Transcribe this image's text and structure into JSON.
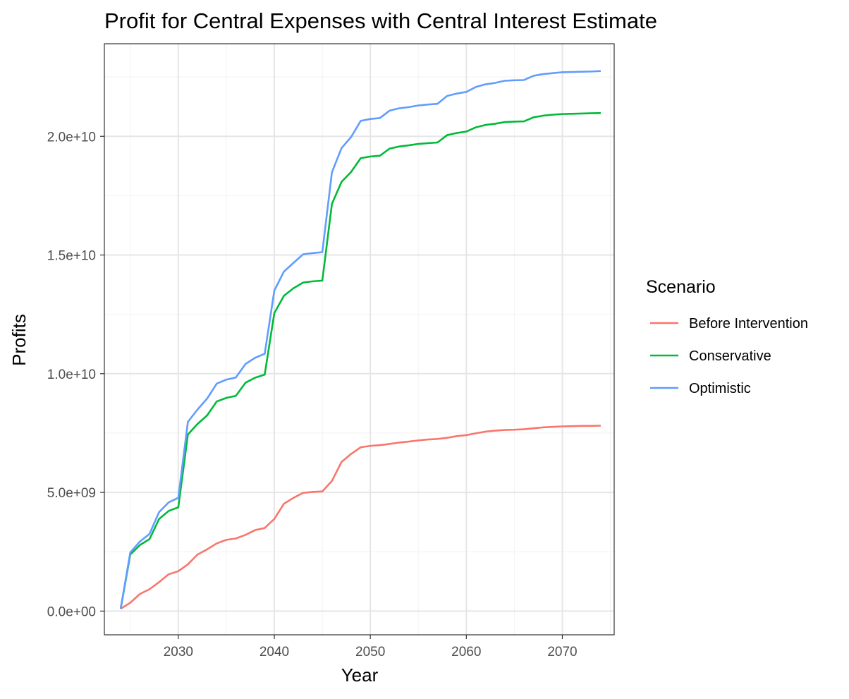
{
  "chart_data": {
    "type": "line",
    "title": "Profit for Central Expenses with Central Interest Estimate",
    "xlabel": "Year",
    "ylabel": "Profits",
    "xlim": [
      2022.3,
      2075.4
    ],
    "ylim": [
      -1000000000,
      23900000000
    ],
    "x_ticks": [
      2030,
      2040,
      2050,
      2060,
      2070
    ],
    "x_tick_labels": [
      "2030",
      "2040",
      "2050",
      "2060",
      "2070"
    ],
    "y_ticks": [
      0,
      5000000000,
      10000000000,
      15000000000,
      20000000000
    ],
    "y_tick_labels": [
      "0.0e+00",
      "5.0e+09",
      "1.0e+10",
      "1.5e+10",
      "2.0e+10"
    ],
    "grid": true,
    "legend": {
      "title": "Scenario",
      "position": "right"
    },
    "x": [
      2024,
      2025,
      2026,
      2027,
      2028,
      2029,
      2030,
      2031,
      2032,
      2033,
      2034,
      2035,
      2036,
      2037,
      2038,
      2039,
      2040,
      2041,
      2042,
      2043,
      2044,
      2045,
      2046,
      2047,
      2048,
      2049,
      2050,
      2051,
      2052,
      2053,
      2054,
      2055,
      2056,
      2057,
      2058,
      2059,
      2060,
      2061,
      2062,
      2063,
      2064,
      2065,
      2066,
      2067,
      2068,
      2069,
      2070,
      2071,
      2072,
      2073,
      2074
    ],
    "series": [
      {
        "name": "Before Intervention",
        "color": "#F8766D",
        "values": [
          0.1,
          0.35,
          0.72,
          0.92,
          1.22,
          1.55,
          1.68,
          1.97,
          2.38,
          2.6,
          2.85,
          3.0,
          3.06,
          3.21,
          3.41,
          3.5,
          3.88,
          4.52,
          4.77,
          4.98,
          5.02,
          5.04,
          5.48,
          6.28,
          6.62,
          6.9,
          6.96,
          6.99,
          7.04,
          7.1,
          7.14,
          7.19,
          7.23,
          7.25,
          7.3,
          7.37,
          7.41,
          7.49,
          7.56,
          7.6,
          7.63,
          7.64,
          7.66,
          7.7,
          7.74,
          7.76,
          7.78,
          7.79,
          7.8,
          7.8,
          7.81
        ]
      },
      {
        "name": "Conservative",
        "color": "#00BA38",
        "values": [
          0.1,
          2.38,
          2.78,
          3.03,
          3.88,
          4.22,
          4.37,
          7.44,
          7.88,
          8.24,
          8.83,
          8.98,
          9.07,
          9.62,
          9.83,
          9.96,
          12.55,
          13.28,
          13.6,
          13.84,
          13.89,
          13.92,
          17.15,
          18.08,
          18.5,
          19.08,
          19.15,
          19.18,
          19.48,
          19.57,
          19.62,
          19.68,
          19.71,
          19.74,
          20.05,
          20.14,
          20.2,
          20.38,
          20.48,
          20.53,
          20.6,
          20.62,
          20.63,
          20.8,
          20.87,
          20.91,
          20.94,
          20.95,
          20.96,
          20.97,
          20.98
        ]
      },
      {
        "name": "Optimistic",
        "color": "#619CFF",
        "values": [
          0.1,
          2.47,
          2.93,
          3.25,
          4.17,
          4.58,
          4.77,
          7.97,
          8.49,
          8.95,
          9.58,
          9.75,
          9.84,
          10.41,
          10.67,
          10.84,
          13.5,
          14.3,
          14.67,
          15.03,
          15.08,
          15.12,
          18.48,
          19.5,
          19.97,
          20.65,
          20.73,
          20.77,
          21.08,
          21.18,
          21.23,
          21.3,
          21.34,
          21.37,
          21.7,
          21.8,
          21.87,
          22.08,
          22.19,
          22.25,
          22.34,
          22.36,
          22.37,
          22.55,
          22.62,
          22.66,
          22.7,
          22.71,
          22.72,
          22.73,
          22.75
        ]
      }
    ],
    "values_unit_multiplier": 1000000000
  }
}
